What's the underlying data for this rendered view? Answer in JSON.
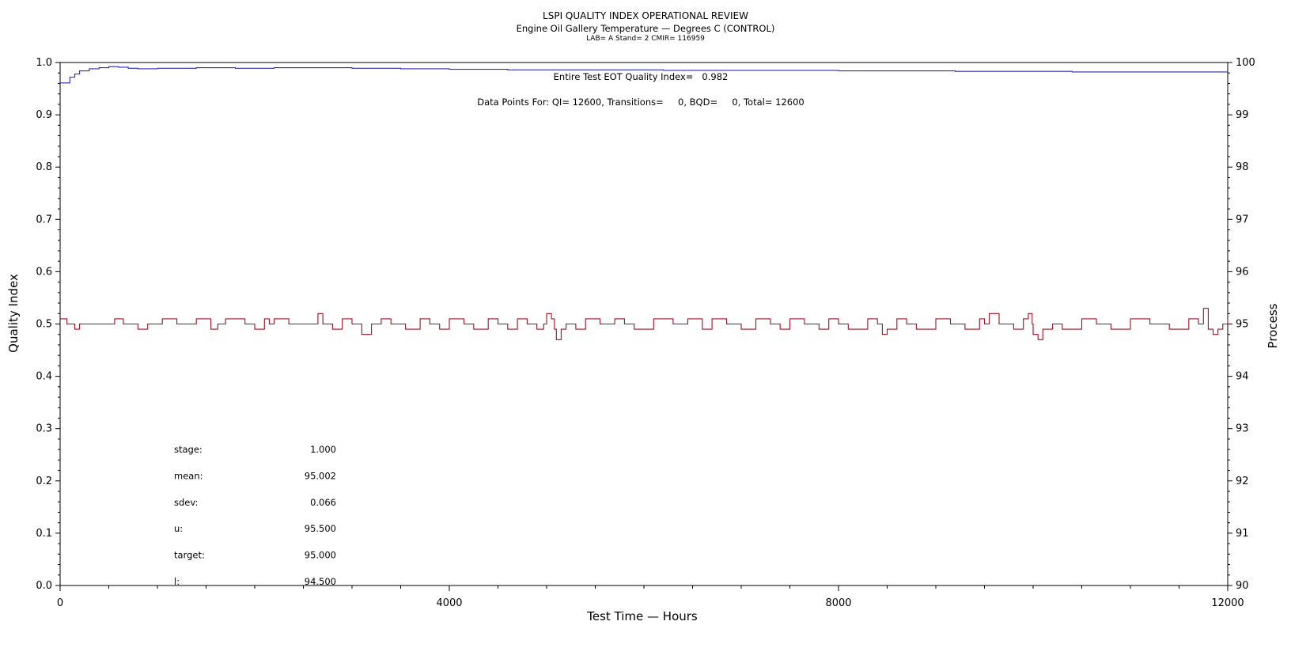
{
  "chart_data": {
    "type": "line",
    "title": "LSPI QUALITY INDEX OPERATIONAL REVIEW",
    "subtitle": "Engine Oil Gallery Temperature — Degrees C (CONTROL)",
    "subtitle2": "LAB= A Stand= 2 CMIR= 116959",
    "xlabel": "Test Time — Hours",
    "ylabel_left": "Quality Index",
    "ylabel_right": "Process",
    "xlim": [
      0,
      12000
    ],
    "ylim_left": [
      0,
      1
    ],
    "ylim_right": [
      90,
      100
    ],
    "x_ticks": [
      "0",
      "4000",
      "8000",
      "12000"
    ],
    "y_left_ticks": [
      "0.0",
      "0.1",
      "0.2",
      "0.3",
      "0.4",
      "0.5",
      "0.6",
      "0.7",
      "0.8",
      "0.9",
      "1.0"
    ],
    "y_right_ticks": [
      "90",
      "91",
      "92",
      "93",
      "94",
      "95",
      "96",
      "97",
      "98",
      "99",
      "100"
    ],
    "grid": false,
    "annotations": {
      "quality_index": "Entire Test EOT Quality Index=   0.982",
      "data_points": "Data Points For: QI= 12600, Transitions=     0, BQD=     0, Total= 12600"
    },
    "stats": [
      {
        "label": "stage:",
        "value": "1.000"
      },
      {
        "label": "mean:",
        "value": "95.002"
      },
      {
        "label": "sdev:",
        "value": "0.066"
      },
      {
        "label": "u:",
        "value": "95.500"
      },
      {
        "label": "target:",
        "value": "95.000"
      },
      {
        "label": "l:",
        "value": "94.500"
      }
    ],
    "series": [
      {
        "axis": "left",
        "color": "#2b2bb0",
        "x": [
          0,
          80,
          100,
          150,
          200,
          300,
          400,
          500,
          600,
          700,
          800,
          1000,
          1400,
          1800,
          2200,
          2600,
          3000,
          3500,
          4000,
          4600,
          5000,
          5600,
          6200,
          6800,
          7400,
          8000,
          8600,
          9200,
          9800,
          10400,
          11000,
          11600,
          12000
        ],
        "values": [
          0.961,
          0.961,
          0.972,
          0.978,
          0.984,
          0.988,
          0.99,
          0.992,
          0.991,
          0.989,
          0.988,
          0.989,
          0.99,
          0.989,
          0.99,
          0.99,
          0.989,
          0.988,
          0.987,
          0.986,
          0.986,
          0.986,
          0.985,
          0.985,
          0.985,
          0.984,
          0.984,
          0.983,
          0.983,
          0.982,
          0.982,
          0.982,
          0.982
        ]
      },
      {
        "axis": "right",
        "color": "#a01020",
        "x": [
          0,
          70,
          150,
          200,
          300,
          560,
          650,
          800,
          900,
          1050,
          1200,
          1400,
          1550,
          1620,
          1700,
          1900,
          2000,
          2100,
          2150,
          2200,
          2350,
          2550,
          2650,
          2700,
          2800,
          2900,
          3000,
          3100,
          3200,
          3300,
          3400,
          3550,
          3700,
          3800,
          3900,
          4000,
          4150,
          4250,
          4400,
          4500,
          4600,
          4700,
          4800,
          4900,
          4970,
          5000,
          5050,
          5080,
          5100,
          5150,
          5200,
          5300,
          5400,
          5550,
          5700,
          5800,
          5900,
          6100,
          6300,
          6450,
          6600,
          6700,
          6850,
          7000,
          7150,
          7300,
          7400,
          7500,
          7650,
          7800,
          7900,
          8000,
          8100,
          8300,
          8400,
          8450,
          8500,
          8600,
          8700,
          8800,
          9000,
          9150,
          9300,
          9450,
          9500,
          9550,
          9650,
          9800,
          9900,
          9950,
          9990,
          10000,
          10050,
          10100,
          10200,
          10300,
          10500,
          10650,
          10800,
          11000,
          11200,
          11400,
          11600,
          11700,
          11750,
          11800,
          11850,
          11900,
          11950,
          12000
        ],
        "values": [
          95.1,
          95.0,
          94.9,
          95.0,
          95.0,
          95.1,
          95.0,
          94.9,
          95.0,
          95.1,
          95.0,
          95.1,
          94.9,
          95.0,
          95.1,
          95.0,
          94.9,
          95.1,
          95.0,
          95.1,
          95.0,
          95.0,
          95.2,
          95.0,
          94.9,
          95.1,
          95.0,
          94.8,
          95.0,
          95.1,
          95.0,
          94.9,
          95.1,
          95.0,
          94.9,
          95.1,
          95.0,
          94.9,
          95.1,
          95.0,
          94.9,
          95.1,
          95.0,
          94.9,
          95.0,
          95.2,
          95.1,
          94.9,
          94.7,
          94.9,
          95.0,
          94.9,
          95.1,
          95.0,
          95.1,
          95.0,
          94.9,
          95.1,
          95.0,
          95.1,
          94.9,
          95.1,
          95.0,
          94.9,
          95.1,
          95.0,
          94.9,
          95.1,
          95.0,
          94.9,
          95.1,
          95.0,
          94.9,
          95.1,
          95.0,
          94.8,
          94.9,
          95.1,
          95.0,
          94.9,
          95.1,
          95.0,
          94.9,
          95.1,
          95.0,
          95.2,
          95.0,
          94.9,
          95.1,
          95.2,
          95.0,
          94.8,
          94.7,
          94.9,
          95.0,
          94.9,
          95.1,
          95.0,
          94.9,
          95.1,
          95.0,
          94.9,
          95.1,
          95.0,
          95.3,
          94.9,
          94.8,
          94.9,
          95.0,
          95.1
        ]
      }
    ]
  }
}
